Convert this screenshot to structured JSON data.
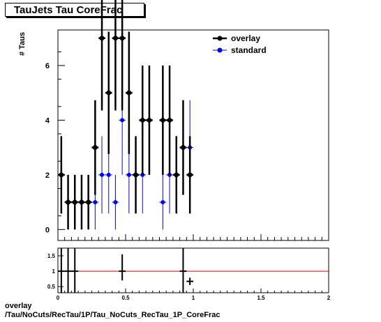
{
  "title": "TauJets Tau CoreFrac",
  "footer": {
    "line1": "overlay",
    "line2": "/Tau/NoCuts/RecTau/1P/Tau_NoCuts_RecTau_1P_CoreFrac"
  },
  "colors": {
    "overlay": "#000000",
    "standard": "#0000ff",
    "ratio_line": "#cc0000"
  },
  "chart_data": [
    {
      "type": "scatter",
      "ylabel": "# Taus",
      "xlim": [
        0,
        2
      ],
      "ylim": [
        -0.4,
        7.3
      ],
      "yticks": [
        0,
        2,
        4,
        6
      ],
      "legend": "top-right",
      "series": [
        {
          "name": "overlay",
          "x": [
            0.025,
            0.075,
            0.125,
            0.175,
            0.225,
            0.275,
            0.325,
            0.375,
            0.425,
            0.475,
            0.525,
            0.575,
            0.625,
            0.675,
            0.775,
            0.825,
            0.875,
            0.925,
            0.975
          ],
          "y": [
            2,
            1,
            1,
            1,
            1,
            3,
            7,
            5,
            7,
            7,
            5,
            2,
            4,
            4,
            4,
            4,
            2,
            3,
            2
          ]
        },
        {
          "name": "standard",
          "x": [
            0.175,
            0.275,
            0.325,
            0.375,
            0.425,
            0.475,
            0.525,
            0.625,
            0.775,
            0.825,
            0.875,
            0.975
          ],
          "y": [
            1,
            1,
            2,
            2,
            1,
            4,
            2,
            2,
            1,
            2,
            2,
            3
          ]
        }
      ]
    },
    {
      "type": "scatter",
      "xlim": [
        0,
        2
      ],
      "ylim": [
        0.3,
        1.75
      ],
      "yticks": [
        0.5,
        1,
        1.5
      ],
      "xticks": [
        0,
        0.5,
        1,
        1.5,
        2
      ],
      "reference_line": 1,
      "series": [
        {
          "name": "ratio",
          "x": [
            0.025,
            0.075,
            0.125,
            0.475,
            0.925,
            0.975
          ],
          "y": [
            1,
            1,
            1,
            1,
            1,
            0.67
          ]
        }
      ]
    }
  ]
}
